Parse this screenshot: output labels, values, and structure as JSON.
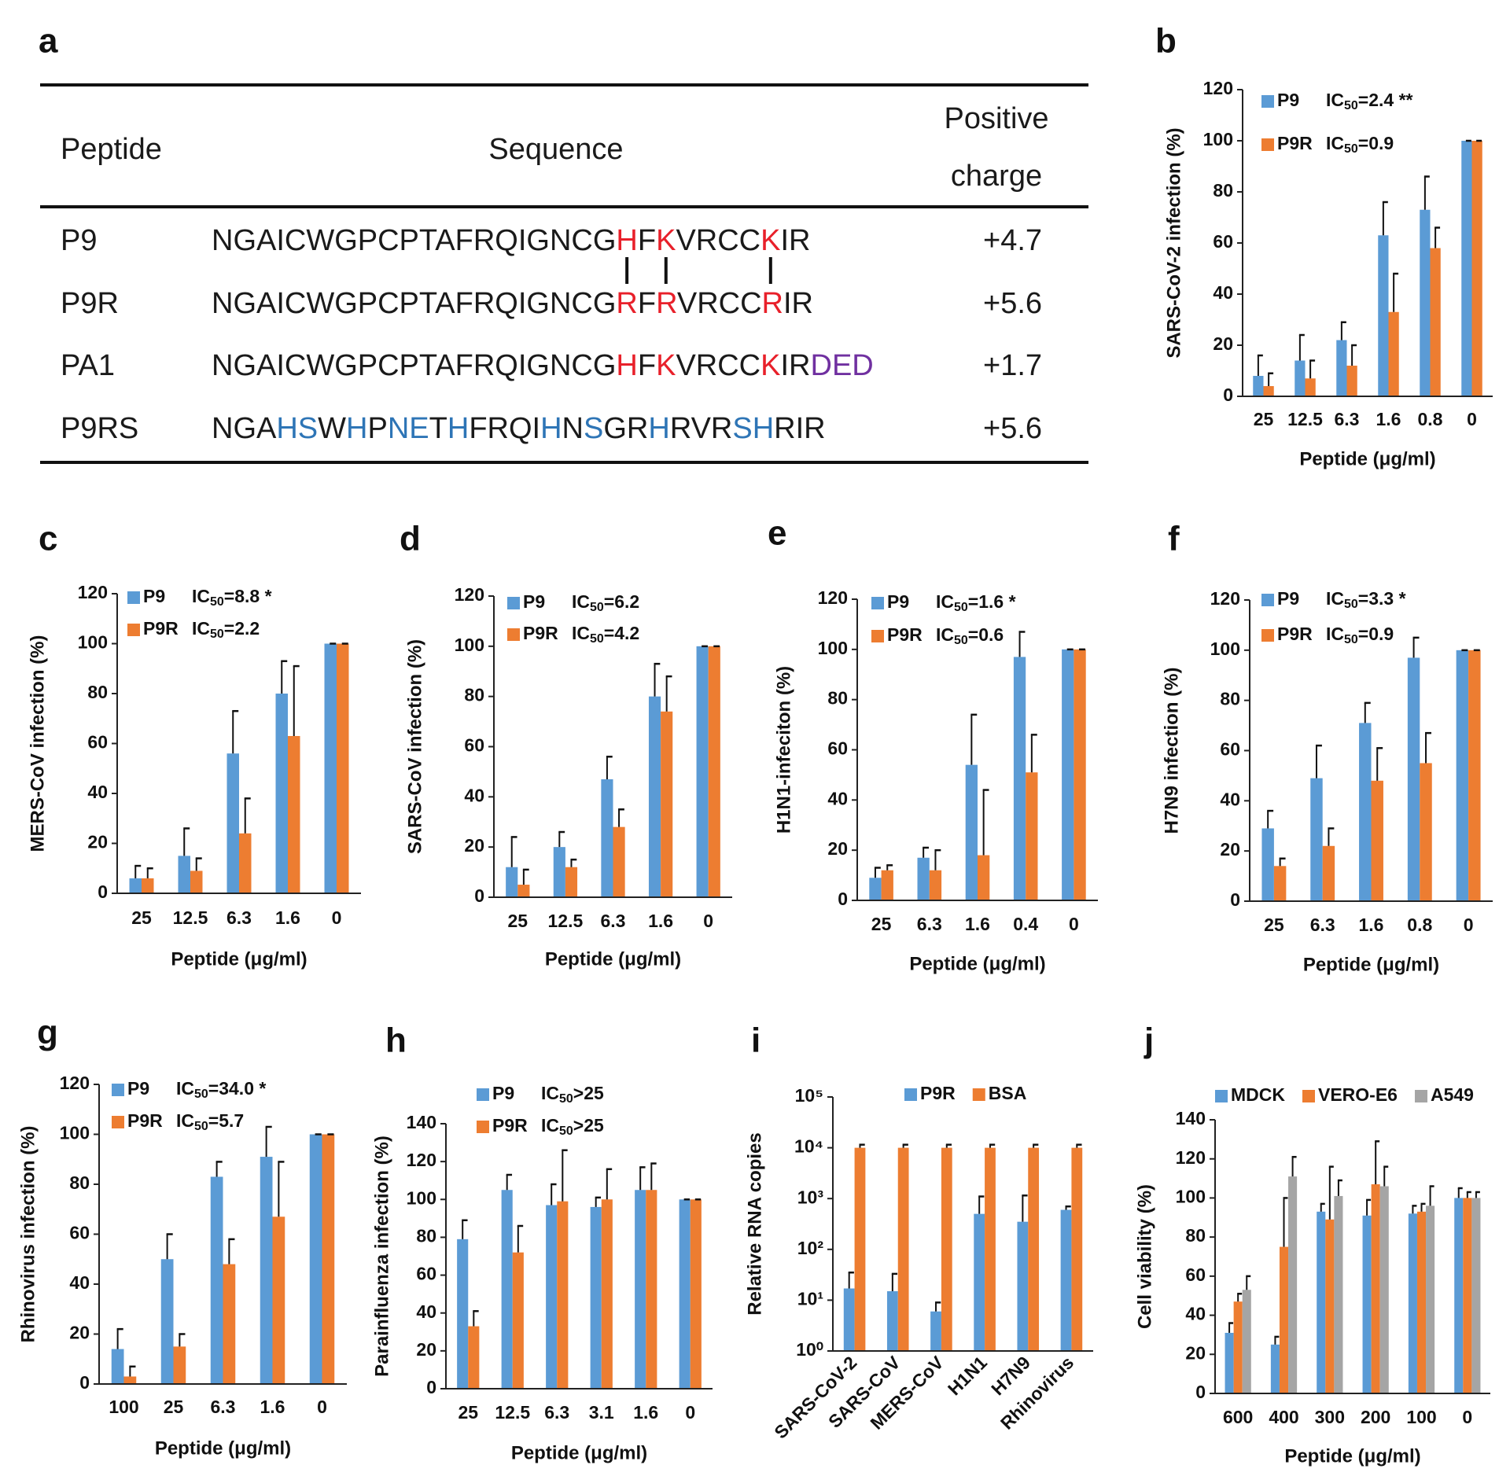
{
  "table": {
    "panel": "a",
    "header": [
      "Peptide",
      "Sequence",
      "Positive charge"
    ],
    "rows": [
      {
        "peptide": "P9",
        "charge": "+4.7",
        "sequence": [
          {
            "text": "NGAICWGPCPTAFRQIGNCG",
            "color": "#1a1a1a"
          },
          {
            "text": "H",
            "color": "#e8202a"
          },
          {
            "text": "F",
            "color": "#1a1a1a"
          },
          {
            "text": "K",
            "color": "#e8202a"
          },
          {
            "text": "VRCC",
            "color": "#1a1a1a"
          },
          {
            "text": "K",
            "color": "#e8202a"
          },
          {
            "text": "IR",
            "color": "#1a1a1a"
          }
        ]
      },
      {
        "peptide": "P9R",
        "charge": "+5.6",
        "sequence": [
          {
            "text": "NGAICWGPCPTAFRQIGNCG",
            "color": "#1a1a1a"
          },
          {
            "text": "R",
            "color": "#e8202a"
          },
          {
            "text": "F",
            "color": "#1a1a1a"
          },
          {
            "text": "R",
            "color": "#e8202a"
          },
          {
            "text": "VRCC",
            "color": "#1a1a1a"
          },
          {
            "text": "R",
            "color": "#e8202a"
          },
          {
            "text": "IR",
            "color": "#1a1a1a"
          }
        ]
      },
      {
        "peptide": "PA1",
        "charge": "+1.7",
        "sequence": [
          {
            "text": "NGAICWGPCPTAFRQIGNCG",
            "color": "#1a1a1a"
          },
          {
            "text": "H",
            "color": "#e8202a"
          },
          {
            "text": "F",
            "color": "#1a1a1a"
          },
          {
            "text": "K",
            "color": "#e8202a"
          },
          {
            "text": "VRCC",
            "color": "#1a1a1a"
          },
          {
            "text": "K",
            "color": "#e8202a"
          },
          {
            "text": "IR",
            "color": "#1a1a1a"
          },
          {
            "text": "DED",
            "color": "#7030a0"
          }
        ]
      },
      {
        "peptide": "P9RS",
        "charge": "+5.6",
        "sequence": [
          {
            "text": "NGA",
            "color": "#1a1a1a"
          },
          {
            "text": "HS",
            "color": "#2e75b6"
          },
          {
            "text": "W",
            "color": "#1a1a1a"
          },
          {
            "text": "H",
            "color": "#2e75b6"
          },
          {
            "text": "P",
            "color": "#1a1a1a"
          },
          {
            "text": "NE",
            "color": "#2e75b6"
          },
          {
            "text": "T",
            "color": "#1a1a1a"
          },
          {
            "text": "H",
            "color": "#2e75b6"
          },
          {
            "text": "FRQI",
            "color": "#1a1a1a"
          },
          {
            "text": "H",
            "color": "#2e75b6"
          },
          {
            "text": "N",
            "color": "#1a1a1a"
          },
          {
            "text": "S",
            "color": "#2e75b6"
          },
          {
            "text": "GR",
            "color": "#1a1a1a"
          },
          {
            "text": "H",
            "color": "#2e75b6"
          },
          {
            "text": "RVR",
            "color": "#1a1a1a"
          },
          {
            "text": "SH",
            "color": "#2e75b6"
          },
          {
            "text": "RIR",
            "color": "#1a1a1a"
          }
        ]
      }
    ]
  },
  "chart_data": [
    {
      "type": "bar",
      "panel": "b",
      "ylabel": "SARS-CoV-2 infection (%)",
      "xlabel": "Peptide (μg/ml)",
      "legend": "upper left",
      "categories": [
        "25",
        "12.5",
        "6.3",
        "1.6",
        "0.8",
        "0"
      ],
      "ylim": [
        0,
        120
      ],
      "yticks": [
        0,
        20,
        40,
        60,
        80,
        100,
        120
      ],
      "series": [
        {
          "name": "P9",
          "color": "#5b9bd5",
          "note": [
            "IC",
            "50",
            "=2.4 **"
          ],
          "values": [
            8,
            14,
            22,
            63,
            73,
            100
          ],
          "errors": [
            8,
            10,
            7,
            13,
            13,
            0
          ]
        },
        {
          "name": "P9R",
          "color": "#ed7d31",
          "note": [
            "IC",
            "50",
            "=0.9"
          ],
          "values": [
            4,
            7,
            12,
            33,
            58,
            100
          ],
          "errors": [
            5,
            7,
            8,
            15,
            8,
            0
          ]
        }
      ]
    },
    {
      "type": "bar",
      "panel": "c",
      "ylabel": "MERS-CoV infection (%)",
      "xlabel": "Peptide (μg/ml)",
      "legend": "upper left",
      "categories": [
        "25",
        "12.5",
        "6.3",
        "1.6",
        "0"
      ],
      "ylim": [
        0,
        120
      ],
      "yticks": [
        0,
        20,
        40,
        60,
        80,
        100,
        120
      ],
      "series": [
        {
          "name": "P9",
          "color": "#5b9bd5",
          "note": [
            "IC",
            "50",
            "=8.8 *"
          ],
          "values": [
            6,
            15,
            56,
            80,
            100
          ],
          "errors": [
            5,
            11,
            17,
            13,
            0
          ]
        },
        {
          "name": "P9R",
          "color": "#ed7d31",
          "note": [
            "IC",
            "50",
            "=2.2"
          ],
          "values": [
            6,
            9,
            24,
            63,
            100
          ],
          "errors": [
            4,
            5,
            14,
            28,
            0
          ]
        }
      ]
    },
    {
      "type": "bar",
      "panel": "d",
      "ylabel": "SARS-CoV infection (%)",
      "xlabel": "Peptide (μg/ml)",
      "legend": "upper left",
      "categories": [
        "25",
        "12.5",
        "6.3",
        "1.6",
        "0"
      ],
      "ylim": [
        0,
        120
      ],
      "yticks": [
        0,
        20,
        40,
        60,
        80,
        100,
        120
      ],
      "series": [
        {
          "name": "P9",
          "color": "#5b9bd5",
          "note": [
            "IC",
            "50",
            "=6.2"
          ],
          "values": [
            12,
            20,
            47,
            80,
            100
          ],
          "errors": [
            12,
            6,
            9,
            13,
            0
          ]
        },
        {
          "name": "P9R",
          "color": "#ed7d31",
          "note": [
            "IC",
            "50",
            "=4.2"
          ],
          "values": [
            5,
            12,
            28,
            74,
            100
          ],
          "errors": [
            6,
            3,
            7,
            14,
            0
          ]
        }
      ]
    },
    {
      "type": "bar",
      "panel": "e",
      "ylabel": "H1N1-infeciton (%)",
      "xlabel": "Peptide (μg/ml)",
      "legend": "upper left",
      "categories": [
        "25",
        "6.3",
        "1.6",
        "0.4",
        "0"
      ],
      "ylim": [
        0,
        120
      ],
      "yticks": [
        0,
        20,
        40,
        60,
        80,
        100,
        120
      ],
      "series": [
        {
          "name": "P9",
          "color": "#5b9bd5",
          "note": [
            "IC",
            "50",
            "=1.6 *"
          ],
          "values": [
            9,
            17,
            54,
            97,
            100
          ],
          "errors": [
            4,
            4,
            20,
            10,
            0
          ]
        },
        {
          "name": "P9R",
          "color": "#ed7d31",
          "note": [
            "IC",
            "50",
            "=0.6"
          ],
          "values": [
            12,
            12,
            18,
            51,
            100
          ],
          "errors": [
            2,
            8,
            26,
            15,
            0
          ]
        }
      ]
    },
    {
      "type": "bar",
      "panel": "f",
      "ylabel": "H7N9 infection (%)",
      "xlabel": "Peptide (μg/ml)",
      "legend": "upper left",
      "categories": [
        "25",
        "6.3",
        "1.6",
        "0.8",
        "0"
      ],
      "ylim": [
        0,
        120
      ],
      "yticks": [
        0,
        20,
        40,
        60,
        80,
        100,
        120
      ],
      "series": [
        {
          "name": "P9",
          "color": "#5b9bd5",
          "note": [
            "IC",
            "50",
            "=3.3 *"
          ],
          "values": [
            29,
            49,
            71,
            97,
            100
          ],
          "errors": [
            7,
            13,
            8,
            8,
            0
          ]
        },
        {
          "name": "P9R",
          "color": "#ed7d31",
          "note": [
            "IC",
            "50",
            "=0.9"
          ],
          "values": [
            14,
            22,
            48,
            55,
            100
          ],
          "errors": [
            3,
            7,
            13,
            12,
            0
          ]
        }
      ]
    },
    {
      "type": "bar",
      "panel": "g",
      "ylabel": "Rhinovirus infection (%)",
      "xlabel": "Peptide (μg/ml)",
      "legend": "upper left",
      "categories": [
        "100",
        "25",
        "6.3",
        "1.6",
        "0"
      ],
      "ylim": [
        0,
        120
      ],
      "yticks": [
        0,
        20,
        40,
        60,
        80,
        100,
        120
      ],
      "series": [
        {
          "name": "P9",
          "color": "#5b9bd5",
          "note": [
            "IC",
            "50",
            "=34.0 *"
          ],
          "values": [
            14,
            50,
            83,
            91,
            100
          ],
          "errors": [
            8,
            10,
            6,
            12,
            0
          ]
        },
        {
          "name": "P9R",
          "color": "#ed7d31",
          "note": [
            "IC",
            "50",
            "=5.7"
          ],
          "values": [
            3,
            15,
            48,
            67,
            100
          ],
          "errors": [
            4,
            5,
            10,
            22,
            0
          ]
        }
      ]
    },
    {
      "type": "bar",
      "panel": "h",
      "ylabel": "Parainfluenza infection (%)",
      "xlabel": "Peptide (μg/ml)",
      "legend": "upper left",
      "categories": [
        "25",
        "12.5",
        "6.3",
        "3.1",
        "1.6",
        "0"
      ],
      "ylim": [
        0,
        140
      ],
      "yticks": [
        0,
        20,
        40,
        60,
        80,
        100,
        120,
        140
      ],
      "series": [
        {
          "name": "P9",
          "color": "#5b9bd5",
          "note": [
            "IC",
            "50",
            ">25"
          ],
          "values": [
            79,
            105,
            97,
            96,
            105,
            100
          ],
          "errors": [
            10,
            8,
            11,
            5,
            12,
            0
          ]
        },
        {
          "name": "P9R",
          "color": "#ed7d31",
          "note": [
            "IC",
            "50",
            ">25"
          ],
          "values": [
            33,
            72,
            99,
            100,
            105,
            100
          ],
          "errors": [
            8,
            14,
            27,
            16,
            14,
            0
          ]
        }
      ]
    },
    {
      "type": "bar",
      "panel": "i",
      "ylabel": "Relative RNA copies",
      "legend": "top",
      "log_scale": true,
      "categories": [
        "SARS-CoV-2",
        "SARS-CoV",
        "MERS-CoV",
        "H1N1",
        "H7N9",
        "Rhinovirus"
      ],
      "ylim": [
        1,
        100000
      ],
      "yticks": [
        {
          "value": 1,
          "label": "10⁰"
        },
        {
          "value": 10,
          "label": "10¹"
        },
        {
          "value": 100,
          "label": "10²"
        },
        {
          "value": 1000,
          "label": "10³"
        },
        {
          "value": 10000,
          "label": "10⁴"
        },
        {
          "value": 100000,
          "label": "10⁵"
        }
      ],
      "series": [
        {
          "name": "P9R",
          "color": "#5b9bd5",
          "values": [
            17,
            15,
            6,
            500,
            350,
            600
          ],
          "errors": [
            18,
            18,
            3,
            600,
            800,
            100
          ]
        },
        {
          "name": "BSA",
          "color": "#ed7d31",
          "values": [
            10000,
            10000,
            10000,
            10000,
            10000,
            10000
          ],
          "errors": [
            1500,
            1500,
            1500,
            1500,
            1500,
            1500
          ]
        }
      ]
    },
    {
      "type": "bar",
      "panel": "j",
      "ylabel": "Cell viability (%)",
      "xlabel": "Peptide (μg/ml)",
      "legend": "top",
      "categories": [
        "600",
        "400",
        "300",
        "200",
        "100",
        "0"
      ],
      "ylim": [
        0,
        140
      ],
      "yticks": [
        0,
        20,
        40,
        60,
        80,
        100,
        120,
        140
      ],
      "series": [
        {
          "name": "MDCK",
          "color": "#5b9bd5",
          "values": [
            31,
            25,
            93,
            91,
            92,
            100
          ],
          "errors": [
            5,
            4,
            4,
            8,
            4,
            5
          ]
        },
        {
          "name": "VERO-E6",
          "color": "#ed7d31",
          "values": [
            47,
            75,
            89,
            107,
            93,
            100
          ],
          "errors": [
            4,
            25,
            27,
            22,
            4,
            3
          ]
        },
        {
          "name": "A549",
          "color": "#a5a5a5",
          "values": [
            53,
            111,
            101,
            106,
            96,
            100
          ],
          "errors": [
            7,
            10,
            8,
            10,
            10,
            3
          ]
        }
      ]
    }
  ]
}
